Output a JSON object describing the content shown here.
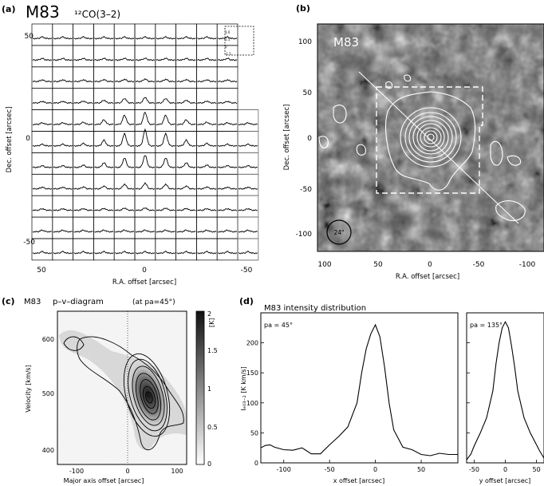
{
  "figure": {
    "panel_a": {
      "letter": "(a)",
      "source": "M83",
      "line": "¹²CO(3–2)",
      "xlabel": "R.A. offset [arcsec]",
      "ylabel": "Dec. offset [arcsec]",
      "x_ticks": [
        "50",
        "0",
        "-50"
      ],
      "y_ticks": [
        "50",
        "0",
        "-50"
      ],
      "inset_ticks": [
        "3.0",
        "1.5",
        "0",
        "-1.5"
      ],
      "grid_rows": 11,
      "grid_cols": 11
    },
    "panel_b": {
      "letter": "(b)",
      "source": "M83",
      "xlabel": "R.A. offset [arcsec]",
      "ylabel": "Dec. offset [arcsec]",
      "x_ticks": [
        "100",
        "50",
        "0",
        "-50",
        "-100"
      ],
      "y_ticks": [
        "100",
        "50",
        "0",
        "-50",
        "-100"
      ],
      "beam_label": "24\""
    },
    "panel_c": {
      "letter": "(c)",
      "source": "M83",
      "title": "p–v–diagram",
      "pa": "(at pa=45°)",
      "xlabel": "Major axis offset [arcsec]",
      "ylabel": "Velocity [km/s]",
      "x_ticks": [
        "-100",
        "0",
        "100"
      ],
      "y_ticks": [
        "600",
        "500",
        "400"
      ],
      "cbar_ticks": [
        "2",
        "1.5",
        "1",
        "0.5",
        "0"
      ],
      "cbar_label": "[K]"
    },
    "panel_d": {
      "letter": "(d)",
      "title": "M83 intensity distribution",
      "left": {
        "pa": "pa = 45°",
        "xlabel": "x offset [arcsec]",
        "ylabel": "Iₑ₀₃₋₂ [K km/s]",
        "x_ticks": [
          "-100",
          "-50",
          "0",
          "50"
        ],
        "y_ticks": [
          "0",
          "50",
          "100",
          "150",
          "200"
        ]
      },
      "right": {
        "pa": "pa = 135°",
        "xlabel": "y offset [arcsec]",
        "x_ticks": [
          "-50",
          "0",
          "50"
        ]
      }
    }
  },
  "chart_data": [
    {
      "type": "line",
      "panel": "d-left",
      "title": "M83 intensity distribution",
      "xlabel": "x offset [arcsec]",
      "ylabel": "Iₑ₀₃₋₂ [K km/s]",
      "xlim": [
        -125,
        90
      ],
      "ylim": [
        0,
        250
      ],
      "x": [
        -125,
        -120,
        -115,
        -110,
        -100,
        -90,
        -80,
        -70,
        -60,
        -50,
        -40,
        -30,
        -20,
        -15,
        -10,
        -5,
        0,
        5,
        10,
        15,
        20,
        30,
        40,
        50,
        60,
        70,
        80,
        90
      ],
      "y": [
        25,
        29,
        30,
        26,
        22,
        21,
        25,
        15,
        15,
        30,
        44,
        60,
        100,
        150,
        190,
        215,
        230,
        210,
        160,
        100,
        55,
        26,
        22,
        14,
        12,
        16,
        14,
        14
      ]
    },
    {
      "type": "line",
      "panel": "d-right",
      "xlabel": "y offset [arcsec]",
      "xlim": [
        -62,
        62
      ],
      "ylim": [
        0,
        250
      ],
      "x": [
        -62,
        -55,
        -50,
        -40,
        -30,
        -20,
        -15,
        -10,
        -5,
        0,
        5,
        10,
        15,
        20,
        30,
        40,
        50,
        55,
        62
      ],
      "y": [
        5,
        15,
        28,
        50,
        75,
        120,
        165,
        200,
        225,
        235,
        225,
        195,
        160,
        120,
        75,
        50,
        30,
        20,
        8
      ]
    }
  ]
}
